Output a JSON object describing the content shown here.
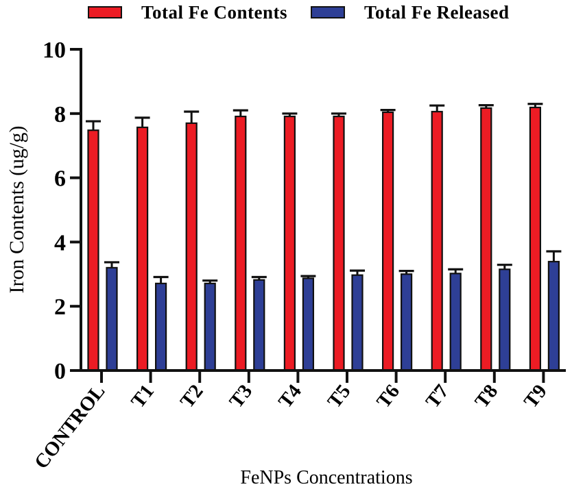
{
  "chart_data": {
    "type": "bar",
    "title": "",
    "xlabel": "FeNPs Concentrations",
    "ylabel": "Iron Contents (ug/g)",
    "ylim": [
      0,
      10
    ],
    "yticks": [
      0,
      2,
      4,
      6,
      8,
      10
    ],
    "grid": false,
    "legend_position": "top",
    "categories": [
      "CONTROL",
      "T1",
      "T2",
      "T3",
      "T4",
      "T5",
      "T6",
      "T7",
      "T8",
      "T9"
    ],
    "series": [
      {
        "name": "Total Fe Contents",
        "color": "#ec1c24",
        "values": [
          7.48,
          7.57,
          7.7,
          7.91,
          7.91,
          7.91,
          8.04,
          8.06,
          8.17,
          8.19
        ],
        "errors": [
          0.28,
          0.3,
          0.36,
          0.19,
          0.09,
          0.09,
          0.07,
          0.19,
          0.09,
          0.11
        ]
      },
      {
        "name": "Total Fe Released",
        "color": "#2e3f96",
        "values": [
          3.2,
          2.71,
          2.71,
          2.82,
          2.87,
          2.97,
          3.0,
          3.02,
          3.15,
          3.39
        ],
        "errors": [
          0.17,
          0.2,
          0.09,
          0.09,
          0.07,
          0.14,
          0.1,
          0.13,
          0.14,
          0.32
        ]
      }
    ]
  }
}
